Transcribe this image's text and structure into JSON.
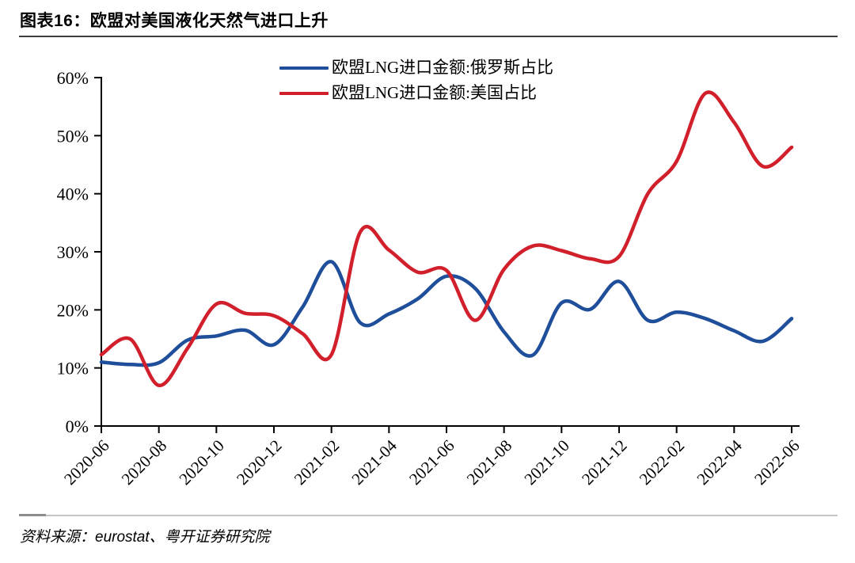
{
  "figure": {
    "title": "图表16：欧盟对美国液化天然气进口上升",
    "source": "资料来源：eurostat、粤开证券研究院"
  },
  "chart_data": {
    "type": "line",
    "x": [
      "2020-06",
      "2020-07",
      "2020-08",
      "2020-09",
      "2020-10",
      "2020-11",
      "2020-12",
      "2021-01",
      "2021-02",
      "2021-03",
      "2021-04",
      "2021-05",
      "2021-06",
      "2021-07",
      "2021-08",
      "2021-09",
      "2021-10",
      "2021-11",
      "2021-12",
      "2022-01",
      "2022-02",
      "2022-03",
      "2022-04",
      "2022-05",
      "2022-06"
    ],
    "x_tick_labels": [
      "2020-06",
      "2020-08",
      "2020-10",
      "2020-12",
      "2021-02",
      "2021-04",
      "2021-06",
      "2021-08",
      "2021-10",
      "2021-12",
      "2022-02",
      "2022-04",
      "2022-06"
    ],
    "series": [
      {
        "name": "欧盟LNG进口金额:俄罗斯占比",
        "color": "#1F4E9B",
        "values": [
          11.0,
          10.6,
          10.9,
          14.8,
          15.5,
          16.5,
          14.0,
          20.5,
          28.3,
          17.8,
          19.3,
          21.9,
          25.8,
          23.7,
          16.2,
          12.2,
          21.2,
          20.1,
          24.9,
          18.2,
          19.6,
          18.5,
          16.4,
          14.6,
          18.5
        ]
      },
      {
        "name": "欧盟LNG进口金额:美国占比",
        "color": "#D1202B",
        "values": [
          12.3,
          15.0,
          7.0,
          13.4,
          21.0,
          19.4,
          19.0,
          15.9,
          12.3,
          33.4,
          30.3,
          26.5,
          26.8,
          18.2,
          27.0,
          31.0,
          30.2,
          28.8,
          29.2,
          40.0,
          45.6,
          57.3,
          52.3,
          44.7,
          48.0
        ]
      }
    ],
    "ylim": [
      0,
      60
    ],
    "ytick_step": 10,
    "ytick_suffix": "%",
    "xlabel": "",
    "ylabel": "",
    "grid": false,
    "legend_position": "top-center"
  }
}
